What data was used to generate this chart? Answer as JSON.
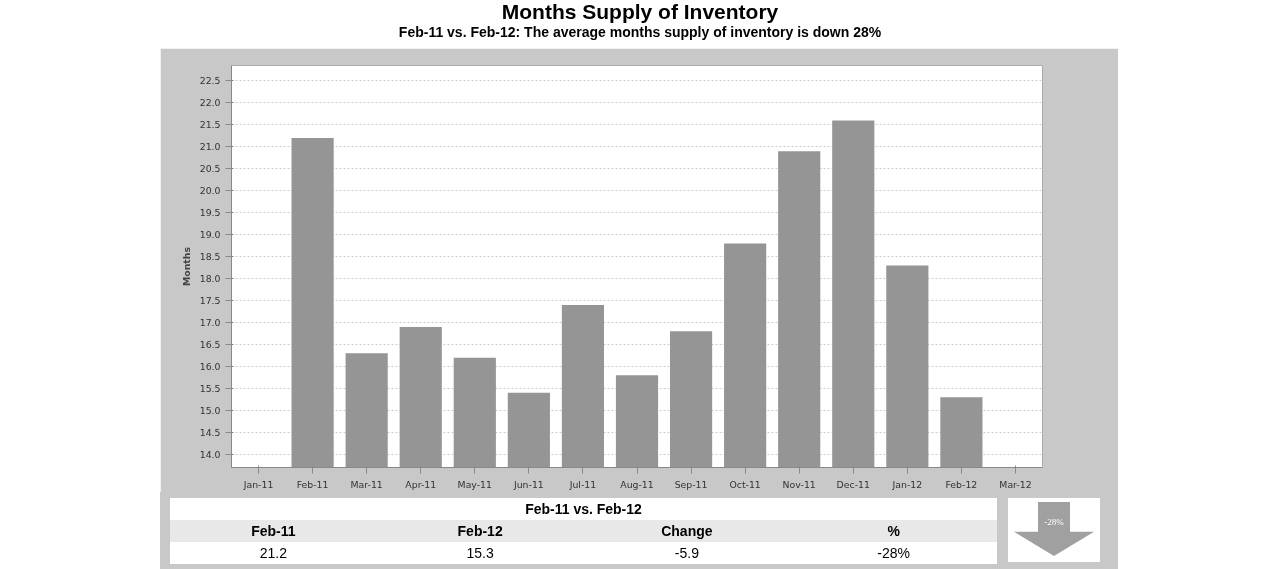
{
  "chart_data": {
    "type": "bar",
    "title": "Months Supply of Inventory",
    "subtitle": "Feb-11 vs. Feb-12:  The average months supply of inventory is down 28%",
    "ylabel": "Months",
    "categories": [
      "Jan-11",
      "Feb-11",
      "Mar-11",
      "Apr-11",
      "May-11",
      "Jun-11",
      "Jul-11",
      "Aug-11",
      "Sep-11",
      "Oct-11",
      "Nov-11",
      "Dec-11",
      "Jan-12",
      "Feb-12",
      "Mar-12"
    ],
    "values": [
      null,
      21.2,
      16.3,
      16.9,
      16.2,
      15.4,
      17.4,
      15.8,
      16.8,
      18.8,
      20.9,
      21.6,
      18.3,
      15.3,
      null
    ],
    "color": "#959595",
    "ylim": [
      13.7,
      22.85
    ],
    "yticks": [
      {
        "value": 14.0,
        "label": "14.0"
      },
      {
        "value": 14.5,
        "label": "14.5"
      },
      {
        "value": 15.0,
        "label": "15.0"
      },
      {
        "value": 15.5,
        "label": "15.5"
      },
      {
        "value": 16.0,
        "label": "16.0"
      },
      {
        "value": 16.5,
        "label": "16.5"
      },
      {
        "value": 17.0,
        "label": "17.0"
      },
      {
        "value": 17.5,
        "label": "17.5"
      },
      {
        "value": 18.0,
        "label": "18.0"
      },
      {
        "value": 18.5,
        "label": "18.5"
      },
      {
        "value": 19.0,
        "label": "19.0"
      },
      {
        "value": 19.5,
        "label": "19.5"
      },
      {
        "value": 20.0,
        "label": "20.0"
      },
      {
        "value": 20.5,
        "label": "20.5"
      },
      {
        "value": 21.0,
        "label": "21.0"
      },
      {
        "value": 21.5,
        "label": "21.5"
      },
      {
        "value": 22.0,
        "label": "22.0"
      },
      {
        "value": 22.5,
        "label": "22.5"
      }
    ],
    "grid": "y",
    "annotations": [
      "Feb-11 vs. Feb-12",
      "Feb-11",
      "Feb-12",
      "Change",
      "%",
      "21.2",
      "15.3",
      "-5.9",
      "-28%",
      "-28%"
    ]
  }
}
